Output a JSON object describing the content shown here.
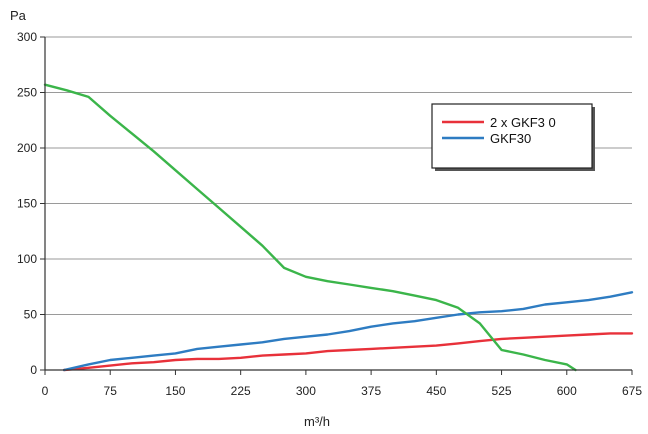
{
  "chart_data": {
    "type": "line",
    "title": "",
    "xlabel": "m³/h",
    "ylabel": "Pa",
    "xlim": [
      0,
      675
    ],
    "ylim": [
      0,
      300
    ],
    "x_ticks": [
      "0",
      "75",
      "150",
      "225",
      "300",
      "375",
      "450",
      "525",
      "600",
      "675"
    ],
    "y_ticks": [
      "0",
      "50",
      "100",
      "150",
      "200",
      "250",
      "300"
    ],
    "grid": "horizontal",
    "legend_position": "right",
    "series": [
      {
        "name": "2 x GKF3 0",
        "color": "#e8313a",
        "points": [
          [
            22,
            0
          ],
          [
            50,
            2
          ],
          [
            75,
            4
          ],
          [
            100,
            6
          ],
          [
            125,
            7
          ],
          [
            150,
            9
          ],
          [
            175,
            10
          ],
          [
            200,
            10
          ],
          [
            225,
            11
          ],
          [
            250,
            13
          ],
          [
            275,
            14
          ],
          [
            300,
            15
          ],
          [
            325,
            17
          ],
          [
            350,
            18
          ],
          [
            375,
            19
          ],
          [
            400,
            20
          ],
          [
            425,
            21
          ],
          [
            450,
            22
          ],
          [
            475,
            24
          ],
          [
            500,
            26
          ],
          [
            525,
            28
          ],
          [
            550,
            29
          ],
          [
            575,
            30
          ],
          [
            600,
            31
          ],
          [
            625,
            32
          ],
          [
            650,
            33
          ],
          [
            675,
            33
          ]
        ]
      },
      {
        "name": "GKF30",
        "color": "#2e7cc2",
        "points": [
          [
            22,
            0
          ],
          [
            50,
            5
          ],
          [
            75,
            9
          ],
          [
            100,
            11
          ],
          [
            125,
            13
          ],
          [
            150,
            15
          ],
          [
            175,
            19
          ],
          [
            200,
            21
          ],
          [
            225,
            23
          ],
          [
            250,
            25
          ],
          [
            275,
            28
          ],
          [
            300,
            30
          ],
          [
            325,
            32
          ],
          [
            350,
            35
          ],
          [
            375,
            39
          ],
          [
            400,
            42
          ],
          [
            425,
            44
          ],
          [
            450,
            47
          ],
          [
            475,
            50
          ],
          [
            500,
            52
          ],
          [
            525,
            53
          ],
          [
            550,
            55
          ],
          [
            575,
            59
          ],
          [
            600,
            61
          ],
          [
            625,
            63
          ],
          [
            650,
            66
          ],
          [
            675,
            70
          ]
        ]
      },
      {
        "name": "",
        "color": "#3bb54a",
        "points": [
          [
            0,
            257
          ],
          [
            25,
            252
          ],
          [
            50,
            246
          ],
          [
            75,
            229
          ],
          [
            100,
            213
          ],
          [
            125,
            197
          ],
          [
            150,
            180
          ],
          [
            175,
            163
          ],
          [
            200,
            146
          ],
          [
            225,
            129
          ],
          [
            250,
            112
          ],
          [
            275,
            92
          ],
          [
            300,
            84
          ],
          [
            325,
            80
          ],
          [
            350,
            77
          ],
          [
            375,
            74
          ],
          [
            400,
            71
          ],
          [
            425,
            67
          ],
          [
            450,
            63
          ],
          [
            475,
            56
          ],
          [
            500,
            42
          ],
          [
            525,
            18
          ],
          [
            550,
            14
          ],
          [
            575,
            9
          ],
          [
            600,
            5
          ],
          [
            610,
            0
          ]
        ]
      }
    ]
  }
}
